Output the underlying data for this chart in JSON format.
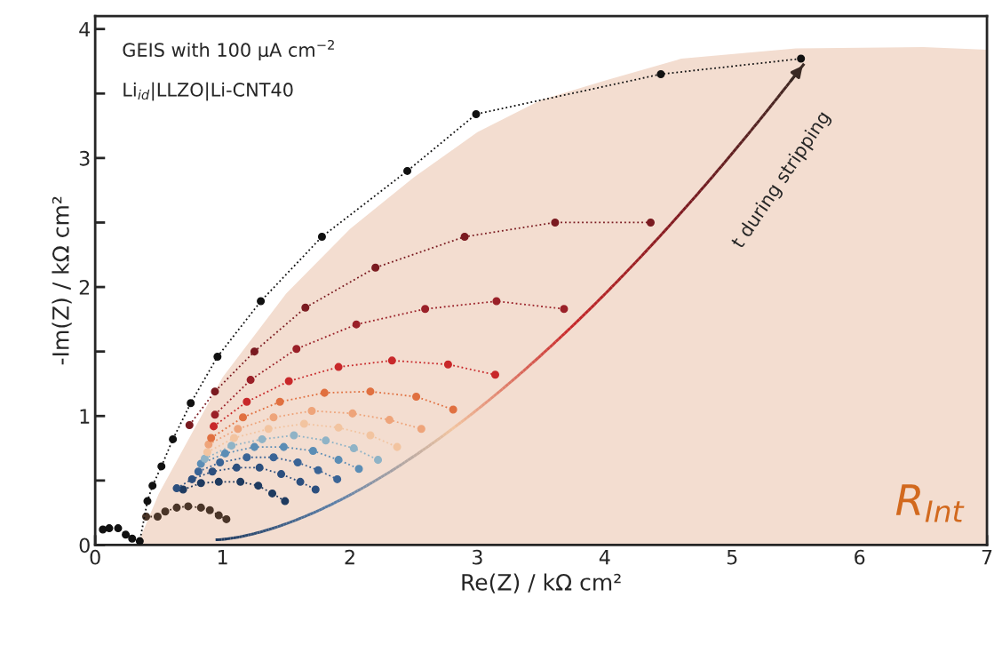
{
  "chart_data": {
    "type": "line",
    "xlabel": "Re(Z) / kΩ cm²",
    "ylabel": "-Im(Z) / kΩ cm²",
    "annotations": [
      "GEIS with 100 µA cm$^{−2}$",
      "Li$_{id}$|LLZO|Li-CNT40",
      "t during stripping"
    ],
    "xlim": [
      0,
      7
    ],
    "ylim": [
      0,
      4.1
    ],
    "xticks": [
      0,
      {
        "value": 0.5,
        "label": null
      },
      1,
      {
        "value": 1.5,
        "label": null
      },
      2,
      {
        "value": 2.5,
        "label": null
      },
      3,
      {
        "value": 3.5,
        "label": null
      },
      4,
      {
        "value": 4.5,
        "label": null
      },
      5,
      {
        "value": 5.5,
        "label": null
      },
      6,
      {
        "value": 6.5,
        "label": null
      },
      7
    ],
    "yticks": [
      0,
      {
        "value": 0.5,
        "label": null
      },
      1,
      {
        "value": 1.5,
        "label": null
      },
      2,
      {
        "value": 2.5,
        "label": null
      },
      3,
      {
        "value": 3.5,
        "label": null
      },
      4
    ],
    "grid": false,
    "legend": false,
    "marker": "circle",
    "line_style": "dotted",
    "series": [
      {
        "type": "area",
        "name": "R$_{Int}$",
        "color": "#f3ddd0",
        "x": [
          0.33,
          0.5,
          0.75,
          1.0,
          1.5,
          2.0,
          2.5,
          3.0,
          3.5,
          4.0,
          4.6,
          5.5,
          6.5,
          7.0
        ],
        "values": [
          0,
          0.4,
          0.85,
          1.3,
          1.95,
          2.45,
          2.85,
          3.2,
          3.45,
          3.6,
          3.77,
          3.85,
          3.86,
          3.84
        ],
        "marker": "none"
      },
      {
        "color": "#4a3528",
        "x": [
          0.4,
          0.49,
          0.55,
          0.64,
          0.73,
          0.83,
          0.9,
          0.97,
          1.03
        ],
        "values": [
          0.22,
          0.22,
          0.26,
          0.29,
          0.3,
          0.29,
          0.27,
          0.23,
          0.2
        ]
      },
      {
        "color": "#1e3a5f",
        "x": [
          0.69,
          0.83,
          0.97,
          1.14,
          1.28,
          1.39,
          1.49
        ],
        "values": [
          0.43,
          0.48,
          0.49,
          0.49,
          0.46,
          0.4,
          0.34
        ]
      },
      {
        "color": "#2c4f7e",
        "x": [
          0.64,
          0.76,
          0.92,
          1.11,
          1.29,
          1.46,
          1.61,
          1.73
        ],
        "values": [
          0.44,
          0.51,
          0.57,
          0.6,
          0.6,
          0.55,
          0.49,
          0.43
        ]
      },
      {
        "color": "#3a6496",
        "x": [
          0.81,
          0.98,
          1.19,
          1.4,
          1.59,
          1.75,
          1.9
        ],
        "values": [
          0.57,
          0.64,
          0.68,
          0.68,
          0.64,
          0.58,
          0.51
        ]
      },
      {
        "color": "#5b8db5",
        "x": [
          0.83,
          1.02,
          1.25,
          1.48,
          1.71,
          1.91,
          2.07
        ],
        "values": [
          0.63,
          0.71,
          0.76,
          0.76,
          0.73,
          0.66,
          0.59
        ]
      },
      {
        "color": "#8fb3c6",
        "x": [
          0.86,
          1.07,
          1.31,
          1.56,
          1.81,
          2.03,
          2.22
        ],
        "values": [
          0.67,
          0.77,
          0.82,
          0.85,
          0.81,
          0.75,
          0.66
        ]
      },
      {
        "color": "#f2c4a0",
        "x": [
          0.88,
          1.09,
          1.36,
          1.64,
          1.91,
          2.16,
          2.37
        ],
        "values": [
          0.72,
          0.83,
          0.9,
          0.94,
          0.91,
          0.85,
          0.76
        ]
      },
      {
        "color": "#eea47a",
        "x": [
          0.89,
          1.12,
          1.4,
          1.7,
          2.02,
          2.31,
          2.56
        ],
        "values": [
          0.78,
          0.9,
          0.99,
          1.04,
          1.02,
          0.97,
          0.9
        ]
      },
      {
        "color": "#e07040",
        "x": [
          0.91,
          1.16,
          1.45,
          1.8,
          2.16,
          2.52,
          2.81
        ],
        "values": [
          0.83,
          0.99,
          1.11,
          1.18,
          1.19,
          1.15,
          1.05
        ]
      },
      {
        "color": "#c8282a",
        "x": [
          0.93,
          1.19,
          1.52,
          1.91,
          2.33,
          2.77,
          3.14
        ],
        "values": [
          0.92,
          1.11,
          1.27,
          1.38,
          1.43,
          1.4,
          1.32
        ]
      },
      {
        "color": "#9a2028",
        "x": [
          0.94,
          1.22,
          1.58,
          2.05,
          2.59,
          3.15,
          3.68
        ],
        "values": [
          1.01,
          1.28,
          1.52,
          1.71,
          1.83,
          1.89,
          1.83
        ]
      },
      {
        "color": "#7a1a20",
        "x": [
          0.74,
          0.94,
          1.25,
          1.65,
          2.2,
          2.9,
          3.61,
          4.36
        ],
        "values": [
          0.93,
          1.19,
          1.5,
          1.84,
          2.15,
          2.39,
          2.5,
          2.5
        ]
      },
      {
        "color": "#111111",
        "x": [
          0.06,
          0.11,
          0.18,
          0.24,
          0.29,
          0.35,
          0.41,
          0.45,
          0.52,
          0.61,
          0.75,
          0.96,
          1.3,
          1.78,
          2.45,
          2.99,
          4.44,
          5.54
        ],
        "values": [
          0.12,
          0.13,
          0.13,
          0.08,
          0.05,
          0.03,
          0.34,
          0.46,
          0.61,
          0.82,
          1.1,
          1.46,
          1.89,
          2.39,
          2.9,
          3.34,
          3.65,
          3.77
        ]
      }
    ]
  }
}
